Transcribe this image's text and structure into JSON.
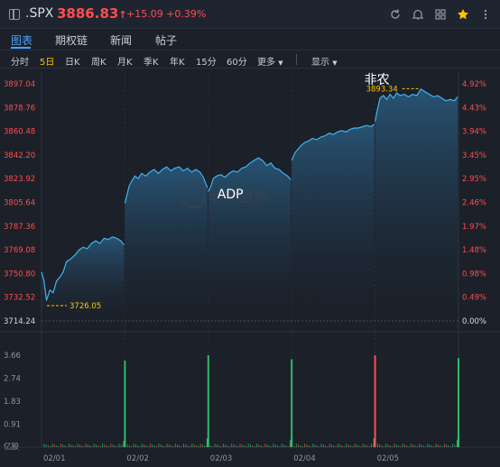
{
  "header": {
    "symbol": ".SPX",
    "price": "3886.83",
    "price_arrow": "↑",
    "change": "+15.09",
    "change_pct": "+0.39%",
    "icons": [
      "refresh-icon",
      "bell-icon",
      "grid-icon",
      "star-icon"
    ]
  },
  "tabs": [
    {
      "label": "图表",
      "active": true
    },
    {
      "label": "期权链",
      "active": false
    },
    {
      "label": "新闻",
      "active": false
    },
    {
      "label": "帖子",
      "active": false
    }
  ],
  "periods": {
    "items": [
      "分时",
      "5日",
      "日K",
      "周K",
      "月K",
      "季K",
      "年K",
      "15分",
      "60分"
    ],
    "active": "5日",
    "more": "更多",
    "display": "显示"
  },
  "chart_data": {
    "type": "area",
    "y_ticks": [
      "3897.04",
      "3878.76",
      "3860.48",
      "3842.20",
      "3823.92",
      "3805.64",
      "3787.36",
      "3769.08",
      "3750.80",
      "3732.52",
      "3714.24"
    ],
    "pct_ticks": [
      "4.92%",
      "4.43%",
      "3.94%",
      "3.45%",
      "2.95%",
      "2.46%",
      "1.97%",
      "1.48%",
      "0.98%",
      "0.49%",
      "0.00%"
    ],
    "ylim": [
      3714.24,
      3897.04
    ],
    "x_ticks": [
      "02/01",
      "02/02",
      "02/03",
      "02/04",
      "02/05"
    ],
    "annotations": [
      {
        "label": "ADP",
        "day": 2,
        "value": 3815
      },
      {
        "label": "非农",
        "day": 4,
        "value": 3900
      }
    ],
    "low_marker": {
      "label": "3726.05",
      "day": 0,
      "value": 3726.05
    },
    "high_marker": {
      "label": "3893.34",
      "day": 4,
      "value": 3893.34
    },
    "watermark": "老虎證券",
    "series": [
      {
        "values": [
          [
            0.0,
            3752
          ],
          [
            0.03,
            3745
          ],
          [
            0.06,
            3730
          ],
          [
            0.1,
            3738
          ],
          [
            0.14,
            3736
          ],
          [
            0.18,
            3745
          ],
          [
            0.22,
            3748
          ],
          [
            0.26,
            3752
          ],
          [
            0.3,
            3760
          ],
          [
            0.35,
            3762
          ],
          [
            0.4,
            3765
          ],
          [
            0.45,
            3769
          ],
          [
            0.5,
            3771
          ],
          [
            0.55,
            3770
          ],
          [
            0.6,
            3774
          ],
          [
            0.65,
            3776
          ],
          [
            0.7,
            3774
          ],
          [
            0.75,
            3778
          ],
          [
            0.8,
            3777
          ],
          [
            0.85,
            3779
          ],
          [
            0.9,
            3778
          ],
          [
            0.95,
            3776
          ],
          [
            0.99,
            3773
          ],
          [
            1.0,
            3805
          ],
          [
            1.02,
            3810
          ],
          [
            1.05,
            3818
          ],
          [
            1.08,
            3822
          ],
          [
            1.12,
            3826
          ],
          [
            1.16,
            3824
          ],
          [
            1.2,
            3828
          ],
          [
            1.25,
            3826
          ],
          [
            1.3,
            3829
          ],
          [
            1.35,
            3831
          ],
          [
            1.4,
            3828
          ],
          [
            1.45,
            3831
          ],
          [
            1.5,
            3833
          ],
          [
            1.55,
            3830
          ],
          [
            1.6,
            3832
          ],
          [
            1.65,
            3833
          ],
          [
            1.7,
            3830
          ],
          [
            1.75,
            3832
          ],
          [
            1.8,
            3829
          ],
          [
            1.85,
            3831
          ],
          [
            1.9,
            3829
          ],
          [
            1.94,
            3825
          ],
          [
            1.97,
            3820
          ],
          [
            1.99,
            3817
          ],
          [
            2.0,
            3814
          ],
          [
            2.03,
            3818
          ],
          [
            2.06,
            3824
          ],
          [
            2.1,
            3826
          ],
          [
            2.15,
            3827
          ],
          [
            2.2,
            3825
          ],
          [
            2.25,
            3828
          ],
          [
            2.3,
            3830
          ],
          [
            2.35,
            3829
          ],
          [
            2.4,
            3832
          ],
          [
            2.45,
            3833
          ],
          [
            2.5,
            3836
          ],
          [
            2.55,
            3838
          ],
          [
            2.6,
            3840
          ],
          [
            2.65,
            3838
          ],
          [
            2.7,
            3834
          ],
          [
            2.75,
            3836
          ],
          [
            2.8,
            3832
          ],
          [
            2.85,
            3831
          ],
          [
            2.9,
            3828
          ],
          [
            2.95,
            3826
          ],
          [
            2.99,
            3823
          ],
          [
            3.0,
            3838
          ],
          [
            3.04,
            3844
          ],
          [
            3.08,
            3847
          ],
          [
            3.12,
            3850
          ],
          [
            3.16,
            3852
          ],
          [
            3.2,
            3853
          ],
          [
            3.25,
            3855
          ],
          [
            3.3,
            3854
          ],
          [
            3.35,
            3856
          ],
          [
            3.4,
            3857
          ],
          [
            3.45,
            3859
          ],
          [
            3.5,
            3858
          ],
          [
            3.55,
            3860
          ],
          [
            3.6,
            3861
          ],
          [
            3.65,
            3860
          ],
          [
            3.7,
            3862
          ],
          [
            3.75,
            3863
          ],
          [
            3.8,
            3863
          ],
          [
            3.85,
            3864
          ],
          [
            3.9,
            3865
          ],
          [
            3.95,
            3864
          ],
          [
            3.99,
            3866
          ],
          [
            4.0,
            3868
          ],
          [
            4.03,
            3878
          ],
          [
            4.06,
            3886
          ],
          [
            4.1,
            3888
          ],
          [
            4.14,
            3885
          ],
          [
            4.18,
            3889
          ],
          [
            4.22,
            3886
          ],
          [
            4.26,
            3890
          ],
          [
            4.3,
            3888
          ],
          [
            4.35,
            3889
          ],
          [
            4.4,
            3887
          ],
          [
            4.45,
            3889
          ],
          [
            4.5,
            3888
          ],
          [
            4.55,
            3893
          ],
          [
            4.6,
            3891
          ],
          [
            4.65,
            3889
          ],
          [
            4.7,
            3887
          ],
          [
            4.75,
            3888
          ],
          [
            4.8,
            3886
          ],
          [
            4.85,
            3884
          ],
          [
            4.9,
            3885
          ],
          [
            4.95,
            3884
          ],
          [
            4.99,
            3887
          ]
        ]
      }
    ]
  },
  "volume": {
    "unit": "亿股",
    "y_ticks": [
      "3.66",
      "2.74",
      "1.83",
      "0.91"
    ],
    "ymax": 3.66,
    "spikes": [
      {
        "day": 0.99,
        "value": 0.25,
        "color": "#2dbb6a"
      },
      {
        "day": 1.0,
        "value": 3.45,
        "color": "#2dbb6a"
      },
      {
        "day": 1.99,
        "value": 0.35,
        "color": "#2dbb6a"
      },
      {
        "day": 2.0,
        "value": 3.66,
        "color": "#2dbb6a"
      },
      {
        "day": 2.99,
        "value": 0.3,
        "color": "#2dbb6a"
      },
      {
        "day": 3.0,
        "value": 3.5,
        "color": "#2dbb6a"
      },
      {
        "day": 3.99,
        "value": 0.35,
        "color": "#2dbb6a"
      },
      {
        "day": 4.0,
        "value": 3.66,
        "color": "#ff4d4f"
      },
      {
        "day": 4.99,
        "value": 0.3,
        "color": "#2dbb6a"
      },
      {
        "day": 5.0,
        "value": 3.55,
        "color": "#2dbb6a"
      }
    ]
  }
}
